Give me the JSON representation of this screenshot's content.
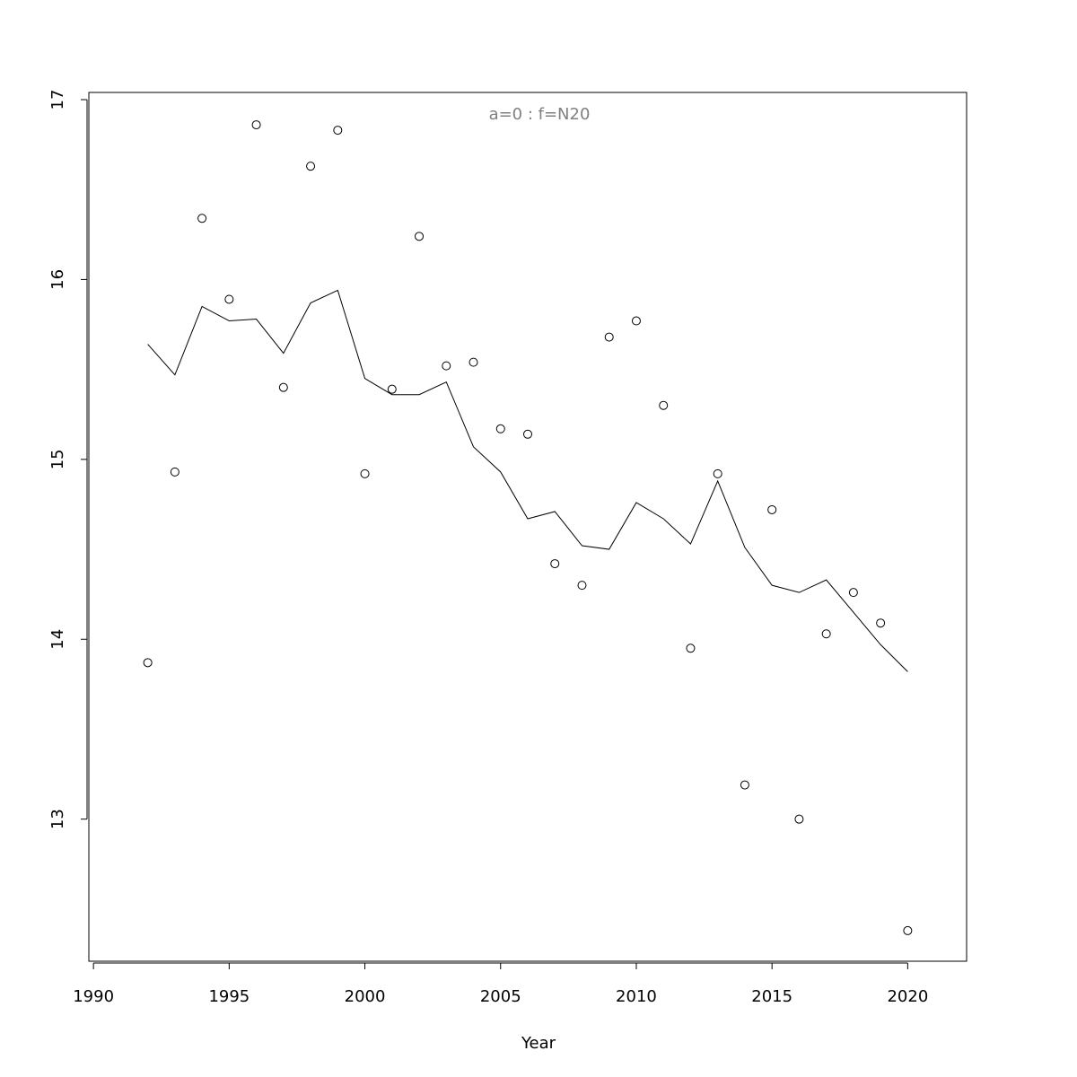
{
  "chart_data": {
    "type": "scatter",
    "annotation": "a=0  :  f=N20",
    "xlabel": "Year",
    "x": [
      1992,
      1993,
      1994,
      1995,
      1996,
      1997,
      1998,
      1999,
      2000,
      2001,
      2002,
      2003,
      2004,
      2005,
      2006,
      2007,
      2008,
      2009,
      2010,
      2011,
      2012,
      2013,
      2014,
      2015,
      2016,
      2017,
      2018,
      2019,
      2020
    ],
    "series": [
      {
        "style": "points",
        "color": "#000000",
        "values": [
          13.87,
          14.93,
          16.34,
          15.89,
          16.86,
          15.4,
          16.63,
          16.83,
          14.92,
          15.39,
          16.24,
          15.52,
          15.54,
          15.17,
          15.14,
          14.42,
          14.3,
          15.68,
          15.77,
          15.3,
          13.95,
          14.92,
          13.19,
          14.72,
          13.0,
          14.03,
          14.26,
          14.09,
          12.38
        ]
      },
      {
        "style": "line",
        "color": "#000000",
        "values": [
          15.64,
          15.47,
          15.85,
          15.77,
          15.78,
          15.59,
          15.87,
          15.94,
          15.45,
          15.36,
          15.36,
          15.43,
          15.07,
          14.93,
          14.67,
          14.71,
          14.52,
          14.5,
          14.76,
          14.67,
          14.53,
          14.88,
          14.51,
          14.3,
          14.26,
          14.33,
          14.15,
          13.97,
          13.82
        ]
      }
    ],
    "xlim": [
      1989.83,
      2022.17
    ],
    "xticks": [
      1990,
      1995,
      2000,
      2005,
      2010,
      2015,
      2020
    ],
    "ylim": [
      12.21,
      17.04
    ],
    "yticks": [
      13,
      14,
      15,
      16,
      17
    ],
    "annotation_color": "#808080"
  }
}
